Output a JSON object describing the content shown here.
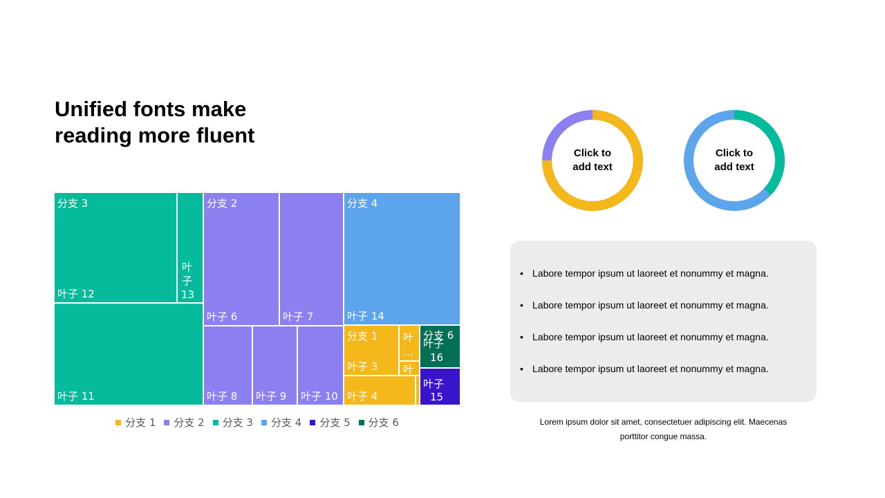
{
  "title": {
    "line1": "Unified fonts make",
    "line2": "reading more fluent"
  },
  "chart_data": {
    "type": "treemap",
    "series": [
      {
        "name": "分支 1",
        "color": "#f5b81b",
        "leaves": [
          {
            "name": "叶子 3",
            "value": 7
          },
          {
            "name": "叶子 4",
            "value": 7
          },
          {
            "name": "叶",
            "value": 1.5
          },
          {
            "name": "叶",
            "value": 1
          }
        ]
      },
      {
        "name": "分支 2",
        "color": "#8c7ff0",
        "leaves": [
          {
            "name": "叶子 6",
            "value": 17
          },
          {
            "name": "叶子 7",
            "value": 14
          },
          {
            "name": "叶子 8",
            "value": 10
          },
          {
            "name": "叶子 9",
            "value": 9
          },
          {
            "name": "叶子 10",
            "value": 9
          }
        ]
      },
      {
        "name": "分支 3",
        "color": "#06bb9b",
        "leaves": [
          {
            "name": "叶子 12",
            "value": 34
          },
          {
            "name": "叶子 13",
            "value": 6
          },
          {
            "name": "叶子 11",
            "value": 40
          }
        ]
      },
      {
        "name": "分支 4",
        "color": "#5ca4ec",
        "leaves": [
          {
            "name": "叶子 14",
            "value": 31
          }
        ]
      },
      {
        "name": "分支 5",
        "color": "#3a14cb",
        "leaves": [
          {
            "name": "叶子 15",
            "value": 3
          }
        ]
      },
      {
        "name": "分支 6",
        "color": "#037055",
        "leaves": [
          {
            "name": "叶子 16",
            "value": 3.5
          }
        ]
      }
    ]
  },
  "legend": [
    {
      "label": "分支 1",
      "color": "#f5b81b"
    },
    {
      "label": "分支 2",
      "color": "#8c7ff0"
    },
    {
      "label": "分支 3",
      "color": "#06bb9b"
    },
    {
      "label": "分支 4",
      "color": "#5ca4ec"
    },
    {
      "label": "分支 5",
      "color": "#3a14cb"
    },
    {
      "label": "分支 6",
      "color": "#037055"
    }
  ],
  "donuts": [
    {
      "line1": "Click to",
      "line2": "add text",
      "value": 0.75,
      "fill_color": "#f5b81b",
      "rest_color": "#8c7ff0"
    },
    {
      "line1": "Click to",
      "line2": "add text",
      "value": 0.37,
      "fill_color": "#06bb9b",
      "rest_color": "#5ca4ec"
    }
  ],
  "panel": {
    "bullets": [
      "Labore tempor ipsum ut laoreet et nonummy  et magna.",
      "Labore tempor ipsum ut laoreet et nonummy  et magna.",
      "Labore tempor ipsum ut laoreet et nonummy  et magna.",
      "Labore tempor ipsum ut laoreet et nonummy  et magna."
    ]
  },
  "caption": {
    "line1": "Lorem ipsum dolor sit amet, consectetuer adipiscing elit. Maecenas",
    "line2": "porttitor congue massa."
  }
}
